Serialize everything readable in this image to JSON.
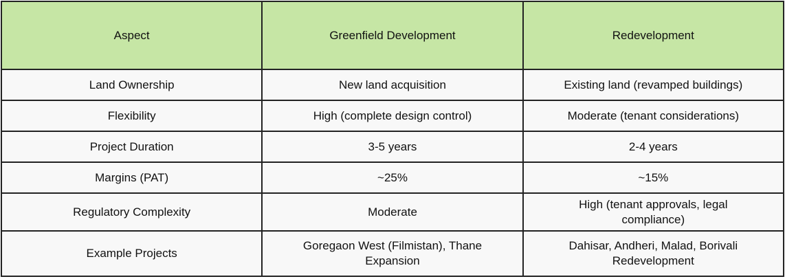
{
  "table": {
    "header": [
      "Aspect",
      "Greenfield Development",
      "Redevelopment"
    ],
    "rows": [
      [
        "Land Ownership",
        "New land acquisition",
        "Existing land (revamped buildings)"
      ],
      [
        "Flexibility",
        "High (complete design control)",
        "Moderate (tenant considerations)"
      ],
      [
        "Project Duration",
        "3-5 years",
        "2-4 years"
      ],
      [
        "Margins (PAT)",
        "~25%",
        "~15%"
      ],
      [
        "Regulatory Complexity",
        "Moderate",
        "High (tenant approvals, legal compliance)"
      ],
      [
        "Example Projects",
        "Goregaon West (Filmistan), Thane Expansion",
        "Dahisar, Andheri, Malad, Borivali Redevelopment"
      ]
    ]
  }
}
